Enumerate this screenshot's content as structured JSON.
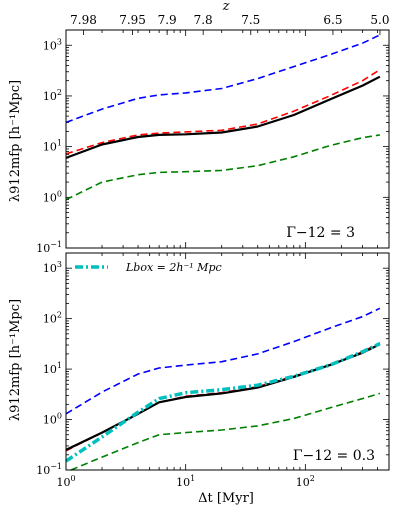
{
  "chart_data": [
    {
      "type": "line",
      "panel": "top",
      "xscale": "log",
      "yscale": "log",
      "xlim": [
        1,
        500
      ],
      "ylim": [
        0.1,
        2000
      ],
      "xlabel": "Δt [Myr]",
      "ylabel": "λ912mfp [h⁻¹Mpc]",
      "x_ticks": [
        "10^0",
        "10^1",
        "10^2"
      ],
      "y_ticks": [
        "10^-1",
        "10^0",
        "10^1",
        "10^2",
        "10^3"
      ],
      "top_axis_label": "z",
      "top_axis_ticks": [
        {
          "label": "7.98",
          "dt": 1.4
        },
        {
          "label": "7.95",
          "dt": 3.6
        },
        {
          "label": "7.9",
          "dt": 7.0
        },
        {
          "label": "7.8",
          "dt": 14.0
        },
        {
          "label": "7.5",
          "dt": 35.0
        },
        {
          "label": "6.5",
          "dt": 170.0
        },
        {
          "label": "5.0",
          "dt": 420.0
        }
      ],
      "annotation": "Γ−12 = 3",
      "series": [
        {
          "color": "#0000ff",
          "style": "dashed",
          "x": [
            1,
            2,
            4,
            6,
            10,
            20,
            40,
            80,
            160,
            300,
            420
          ],
          "y": [
            30,
            55,
            90,
            105,
            115,
            140,
            220,
            380,
            650,
            1100,
            1600
          ]
        },
        {
          "color": "#ff0000",
          "style": "dashed",
          "x": [
            1,
            2,
            4,
            6,
            10,
            20,
            40,
            80,
            160,
            300,
            420
          ],
          "y": [
            7.2,
            12,
            17,
            18.5,
            19.5,
            21,
            28,
            50,
            100,
            200,
            330
          ]
        },
        {
          "color": "#000000",
          "style": "solid",
          "x": [
            1,
            2,
            4,
            6,
            10,
            20,
            40,
            80,
            160,
            300,
            420
          ],
          "y": [
            6,
            11,
            15.5,
            17,
            17.5,
            19,
            25,
            42,
            85,
            160,
            240
          ]
        },
        {
          "color": "#008000",
          "style": "dashed",
          "x": [
            1,
            2,
            4,
            6,
            10,
            20,
            40,
            80,
            160,
            300,
            420
          ],
          "y": [
            0.9,
            2,
            2.8,
            3.1,
            3.2,
            3.4,
            4.2,
            6.3,
            10.5,
            15,
            17
          ]
        }
      ]
    },
    {
      "type": "line",
      "panel": "bottom",
      "xscale": "log",
      "yscale": "log",
      "xlim": [
        1,
        500
      ],
      "ylim": [
        0.1,
        2000
      ],
      "xlabel": "Δt [Myr]",
      "ylabel": "λ912mfp [h⁻¹Mpc]",
      "x_ticks": [
        "10^0",
        "10^1",
        "10^2"
      ],
      "y_ticks": [
        "10^-1",
        "10^0",
        "10^1",
        "10^2",
        "10^3"
      ],
      "annotation": "Γ−12 = 0.3",
      "legend": [
        {
          "label": "Lbox = 2h⁻¹ Mpc",
          "color": "#00bfbf",
          "style": "dashdot"
        }
      ],
      "series": [
        {
          "color": "#0000ff",
          "style": "dashed",
          "x": [
            1,
            2,
            4,
            6,
            10,
            20,
            40,
            80,
            160,
            300,
            420
          ],
          "y": [
            1.3,
            3.5,
            8,
            10.5,
            12,
            14,
            20,
            35,
            65,
            110,
            160
          ]
        },
        {
          "color": "#ff0000",
          "style": "dashed",
          "x": [
            1,
            2,
            4,
            6,
            10,
            20,
            40,
            80,
            160,
            300,
            420
          ],
          "y": [
            0.24,
            0.55,
            1.3,
            2.2,
            2.9,
            3.4,
            4.5,
            7.2,
            12,
            22,
            33
          ]
        },
        {
          "color": "#000000",
          "style": "solid",
          "x": [
            1,
            2,
            4,
            6,
            10,
            20,
            40,
            80,
            160,
            300,
            420
          ],
          "y": [
            0.25,
            0.55,
            1.3,
            2.2,
            2.8,
            3.3,
            4.3,
            7,
            12,
            21,
            31
          ]
        },
        {
          "color": "#00bfbf",
          "style": "dashdot",
          "name": "Lbox = 2h⁻¹ Mpc",
          "x": [
            1,
            2,
            4,
            6,
            10,
            20,
            40,
            80,
            160,
            300,
            420
          ],
          "y": [
            0.15,
            0.45,
            1.4,
            2.6,
            3.4,
            3.9,
            4.8,
            7.2,
            12,
            22,
            32
          ]
        },
        {
          "color": "#008000",
          "style": "dashed",
          "x": [
            1.1,
            2,
            4,
            6,
            10,
            20,
            40,
            80,
            160,
            300,
            420
          ],
          "y": [
            0.1,
            0.18,
            0.35,
            0.5,
            0.55,
            0.62,
            0.75,
            1.05,
            1.7,
            2.6,
            3.3
          ]
        }
      ]
    }
  ]
}
